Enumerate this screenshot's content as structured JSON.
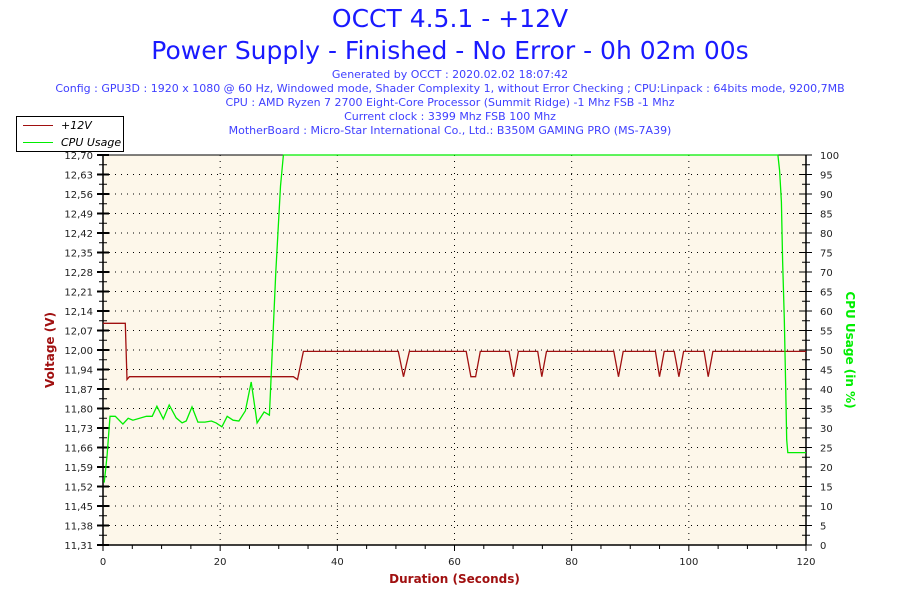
{
  "header": {
    "title": "OCCT 4.5.1 - +12V",
    "subtitle": "Power Supply - Finished - No Error - 0h 02m 00s",
    "generated": "Generated by OCCT : 2020.02.02 18:07:42",
    "config": "Config : GPU3D : 1920 x 1080 @ 60 Hz, Windowed mode, Shader Complexity 1, without Error Checking ; CPU:Linpack : 64bits mode, 9200,7MB",
    "cpu": "CPU : AMD Ryzen 7 2700 Eight-Core Processor (Summit Ridge) -1 Mhz FSB -1 Mhz",
    "clock": "Current clock : 3399 Mhz FSB 100 Mhz",
    "motherboard": "MotherBoard : Micro-Star International Co., Ltd.: B350M GAMING PRO (MS-7A39)"
  },
  "colors": {
    "voltage": "#a01010",
    "cpu": "#00ee00",
    "plot_bg": "#fdf7ea",
    "title": "#1a1aff"
  },
  "chart_data": {
    "type": "line",
    "xlabel": "Duration (Seconds)",
    "ylabel": "Voltage (V)",
    "y2label": "CPU Usage (in %)",
    "xlim": [
      0,
      120
    ],
    "ylim": [
      11.31,
      12.7
    ],
    "y2lim": [
      0,
      100
    ],
    "grid": true,
    "legend_position": "top-left",
    "x_ticks": [
      "0",
      "20",
      "40",
      "60",
      "80",
      "100",
      "120"
    ],
    "y_ticks": [
      "12,70",
      "12,63",
      "12,56",
      "12,49",
      "12,42",
      "12,35",
      "12,28",
      "12,21",
      "12,14",
      "12,07",
      "12,00",
      "11,94",
      "11,87",
      "11,80",
      "11,73",
      "11,66",
      "11,59",
      "11,52",
      "11,45",
      "11,38",
      "11,31"
    ],
    "y2_ticks": [
      "100",
      "95",
      "90",
      "85",
      "80",
      "75",
      "70",
      "65",
      "60",
      "55",
      "50",
      "45",
      "40",
      "35",
      "30",
      "25",
      "20",
      "15",
      "10",
      "5",
      "0"
    ],
    "series": [
      {
        "name": "+12V",
        "axis": "left",
        "points": [
          [
            0,
            12.1
          ],
          [
            3.8,
            12.1
          ],
          [
            4.1,
            11.9
          ],
          [
            4.5,
            11.91
          ],
          [
            32.5,
            11.91
          ],
          [
            33.2,
            11.9
          ],
          [
            34.2,
            12.0
          ],
          [
            50.4,
            12.0
          ],
          [
            51.3,
            11.91
          ],
          [
            52.3,
            12.0
          ],
          [
            62.0,
            12.0
          ],
          [
            62.8,
            11.91
          ],
          [
            63.6,
            11.91
          ],
          [
            64.4,
            12.0
          ],
          [
            69.3,
            12.0
          ],
          [
            70.1,
            11.91
          ],
          [
            70.9,
            12.0
          ],
          [
            74.2,
            12.0
          ],
          [
            74.9,
            11.91
          ],
          [
            75.7,
            12.0
          ],
          [
            87.2,
            12.0
          ],
          [
            88.0,
            11.91
          ],
          [
            88.8,
            12.0
          ],
          [
            94.3,
            12.0
          ],
          [
            95.0,
            11.91
          ],
          [
            95.8,
            12.0
          ],
          [
            97.5,
            12.0
          ],
          [
            98.3,
            11.91
          ],
          [
            99.1,
            12.0
          ],
          [
            102.6,
            12.0
          ],
          [
            103.3,
            11.91
          ],
          [
            104.1,
            12.0
          ],
          [
            120,
            12.0
          ]
        ]
      },
      {
        "name": "CPU Usage",
        "axis": "right",
        "points": [
          [
            0.2,
            16
          ],
          [
            0.5,
            20
          ],
          [
            0.7,
            23
          ],
          [
            1.2,
            33
          ],
          [
            2.1,
            33
          ],
          [
            3.4,
            31
          ],
          [
            4.3,
            32.5
          ],
          [
            5.1,
            32
          ],
          [
            7.4,
            33
          ],
          [
            8.4,
            33
          ],
          [
            9.2,
            35.6
          ],
          [
            10.3,
            32.3
          ],
          [
            11.3,
            35.9
          ],
          [
            12.5,
            32.6
          ],
          [
            13.5,
            31.3
          ],
          [
            14.2,
            31.8
          ],
          [
            15.2,
            35.4
          ],
          [
            16.2,
            31.5
          ],
          [
            17.4,
            31.5
          ],
          [
            18.5,
            31.8
          ],
          [
            19.3,
            31.3
          ],
          [
            20.3,
            30.3
          ],
          [
            21.2,
            33
          ],
          [
            22.2,
            32
          ],
          [
            23.2,
            31.8
          ],
          [
            24.3,
            34.4
          ],
          [
            25.3,
            41.8
          ],
          [
            26.3,
            31.3
          ],
          [
            27.5,
            34.1
          ],
          [
            28.4,
            33.3
          ],
          [
            28.7,
            43
          ],
          [
            29.5,
            70
          ],
          [
            30.3,
            92
          ],
          [
            30.8,
            100
          ],
          [
            115.2,
            100
          ],
          [
            115.5,
            96
          ],
          [
            115.8,
            88
          ],
          [
            116.0,
            73
          ],
          [
            116.3,
            58
          ],
          [
            116.5,
            43
          ],
          [
            116.7,
            27
          ],
          [
            116.9,
            23.7
          ],
          [
            120,
            23.7
          ]
        ]
      }
    ]
  }
}
